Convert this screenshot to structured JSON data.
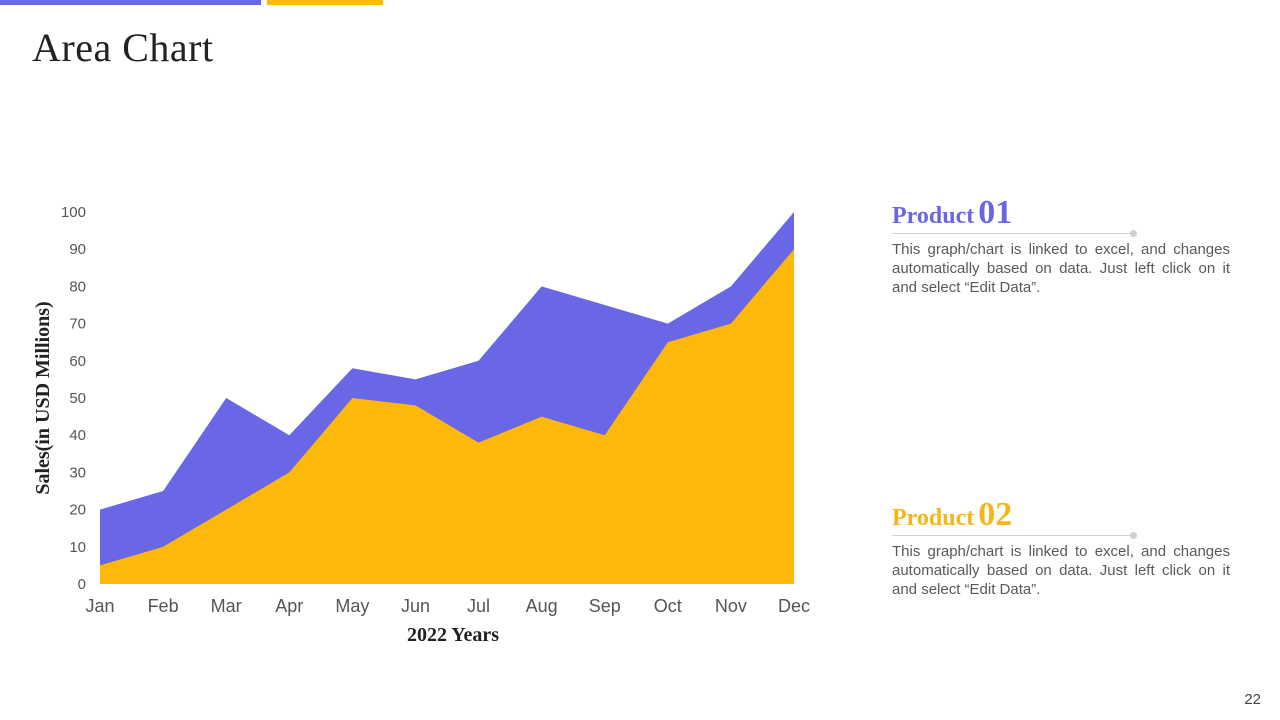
{
  "slide": {
    "title": "Area Chart",
    "page_number": "22"
  },
  "colors": {
    "accent_purple": "#6A67E5",
    "accent_yellow": "#FDB913",
    "series_purple": "#6967E6",
    "series_yellow": "#FDB80C"
  },
  "products": [
    {
      "label": "Product",
      "number": "01",
      "color": "#6A67E5",
      "description": "This graph/chart is linked to excel, and changes automatically based on data. Just left click on it and select “Edit Data”."
    },
    {
      "label": "Product",
      "number": "02",
      "color": "#F4B619",
      "description": "This graph/chart is linked to excel, and changes automatically based on data. Just left click on it and select “Edit Data”."
    }
  ],
  "chart_data": {
    "type": "area",
    "title": "",
    "xlabel": "2022 Years",
    "ylabel": "Sales(in USD Millions)",
    "categories": [
      "Jan",
      "Feb",
      "Mar",
      "Apr",
      "May",
      "Jun",
      "Jul",
      "Aug",
      "Sep",
      "Oct",
      "Nov",
      "Dec"
    ],
    "ylim": [
      0,
      100
    ],
    "yticks": [
      0,
      10,
      20,
      30,
      40,
      50,
      60,
      70,
      80,
      90,
      100
    ],
    "grid": false,
    "series": [
      {
        "name": "Product 01",
        "color": "#6967E6",
        "values": [
          20,
          25,
          50,
          40,
          58,
          55,
          60,
          80,
          75,
          70,
          80,
          100
        ]
      },
      {
        "name": "Product 02",
        "color": "#FDB80C",
        "values": [
          5,
          10,
          20,
          30,
          50,
          48,
          38,
          45,
          40,
          65,
          70,
          90
        ]
      }
    ]
  }
}
